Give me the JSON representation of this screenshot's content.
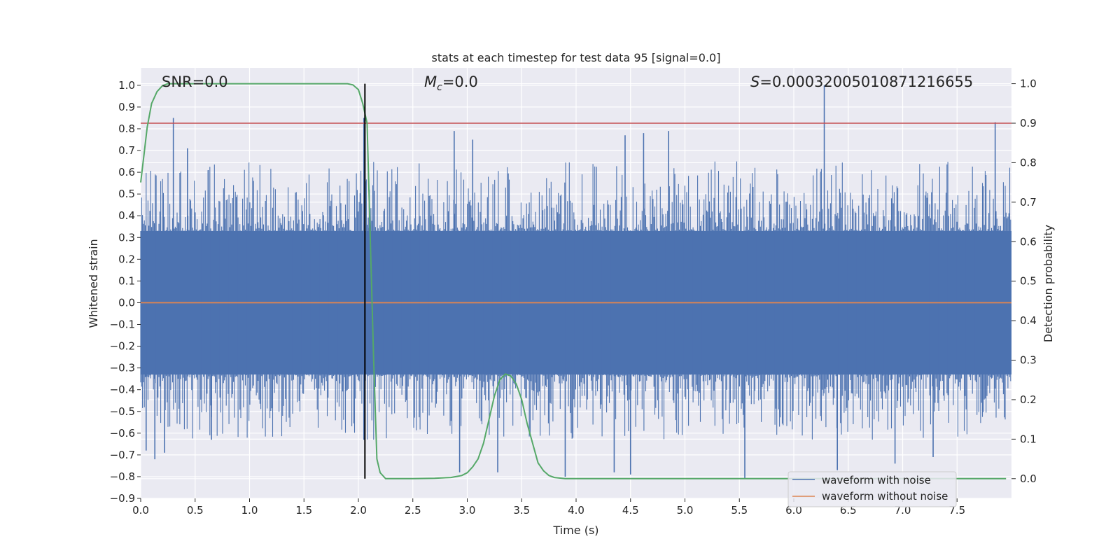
{
  "chart_data": {
    "type": "line",
    "title": "stats at each timestep for test data 95 [signal=0.0]",
    "xlabel": "Time (s)",
    "ylabel_left": "Whitened strain",
    "ylabel_right": "Detection probability",
    "xlim": [
      0.0,
      8.0
    ],
    "ylim_left": [
      -0.9,
      1.08
    ],
    "ylim_right": [
      -0.05,
      1.04
    ],
    "x_ticks": [
      0.0,
      0.5,
      1.0,
      1.5,
      2.0,
      2.5,
      3.0,
      3.5,
      4.0,
      4.5,
      5.0,
      5.5,
      6.0,
      6.5,
      7.0,
      7.5
    ],
    "y_left_ticks": [
      1.0,
      0.9,
      0.8,
      0.7,
      0.6,
      0.5,
      0.4,
      0.3,
      0.2,
      0.1,
      0.0,
      -0.1,
      -0.2,
      -0.3,
      -0.4,
      -0.5,
      -0.6,
      -0.7,
      -0.8,
      -0.9
    ],
    "y_right_ticks": [
      1.0,
      0.9,
      0.8,
      0.7,
      0.6,
      0.5,
      0.4,
      0.3,
      0.2,
      0.1,
      0.0
    ],
    "grid": true,
    "legend_position": "bottom-right",
    "annotations": {
      "snr": "SNR=0.0",
      "mc_symbol": "M",
      "mc_sub": "c",
      "mc_value": "=0.0",
      "s_symbol": "S",
      "s_value": "=0.00032005010871216655"
    },
    "series": [
      {
        "name": "waveform with noise",
        "axis": "left",
        "color": "#4c72b0",
        "band_typical": [
          -0.33,
          0.33
        ],
        "band_max_excursion": [
          -0.81,
          1.0
        ],
        "spikes": [
          {
            "x": 0.3,
            "y": 0.85
          },
          {
            "x": 0.43,
            "y": 0.71
          },
          {
            "x": 0.62,
            "y": 0.61
          },
          {
            "x": 2.05,
            "y": 0.85
          },
          {
            "x": 2.1,
            "y": 0.52
          },
          {
            "x": 2.88,
            "y": 0.79
          },
          {
            "x": 3.05,
            "y": 0.75
          },
          {
            "x": 4.45,
            "y": 0.77
          },
          {
            "x": 4.62,
            "y": 0.78
          },
          {
            "x": 4.85,
            "y": 0.79
          },
          {
            "x": 6.28,
            "y": 1.0
          },
          {
            "x": 7.85,
            "y": 0.83
          },
          {
            "x": 0.05,
            "y": -0.68
          },
          {
            "x": 0.13,
            "y": -0.72
          },
          {
            "x": 0.22,
            "y": -0.69
          },
          {
            "x": 0.65,
            "y": -0.63
          },
          {
            "x": 2.05,
            "y": -0.63
          },
          {
            "x": 2.93,
            "y": -0.78
          },
          {
            "x": 3.28,
            "y": -0.78
          },
          {
            "x": 3.9,
            "y": -0.8
          },
          {
            "x": 4.35,
            "y": -0.78
          },
          {
            "x": 4.5,
            "y": -0.79
          },
          {
            "x": 5.55,
            "y": -0.81
          },
          {
            "x": 6.4,
            "y": -0.77
          },
          {
            "x": 6.93,
            "y": -0.74
          },
          {
            "x": 7.28,
            "y": -0.71
          }
        ]
      },
      {
        "name": "waveform without noise",
        "axis": "left",
        "color": "#dd8452",
        "x": [
          0.0,
          8.0
        ],
        "y": [
          0.0,
          0.0
        ]
      },
      {
        "name": "",
        "axis": "right",
        "color": "#55a868",
        "x": [
          0.0,
          0.03,
          0.06,
          0.1,
          0.15,
          0.2,
          0.25,
          0.3,
          0.4,
          0.6,
          0.8,
          1.0,
          1.2,
          1.4,
          1.6,
          1.8,
          1.9,
          1.95,
          2.0,
          2.04,
          2.08,
          2.11,
          2.14,
          2.17,
          2.2,
          2.25,
          2.3,
          2.5,
          2.7,
          2.85,
          2.95,
          3.0,
          3.05,
          3.1,
          3.15,
          3.2,
          3.25,
          3.3,
          3.35,
          3.4,
          3.45,
          3.5,
          3.55,
          3.6,
          3.65,
          3.7,
          3.75,
          3.8,
          3.9,
          4.0,
          5.0,
          6.0,
          7.0,
          7.95
        ],
        "y": [
          0.75,
          0.82,
          0.89,
          0.95,
          0.98,
          0.995,
          1.0,
          1.0,
          1.0,
          1.0,
          1.0,
          1.0,
          1.0,
          1.0,
          1.0,
          1.0,
          1.0,
          0.997,
          0.985,
          0.95,
          0.9,
          0.6,
          0.3,
          0.05,
          0.015,
          0.0,
          0.0,
          0.0,
          0.001,
          0.003,
          0.008,
          0.015,
          0.03,
          0.05,
          0.09,
          0.15,
          0.21,
          0.25,
          0.265,
          0.26,
          0.24,
          0.2,
          0.14,
          0.09,
          0.04,
          0.02,
          0.008,
          0.003,
          0.0,
          0.0,
          0.0,
          0.0,
          0.0,
          0.0
        ]
      }
    ],
    "reference_lines": [
      {
        "orientation": "horizontal",
        "axis": "right",
        "value": 0.9,
        "color": "#c44e52"
      },
      {
        "orientation": "vertical",
        "value": 2.06,
        "y_axis": "right",
        "range": [
          0.0,
          1.0
        ],
        "color": "#000000"
      }
    ]
  }
}
